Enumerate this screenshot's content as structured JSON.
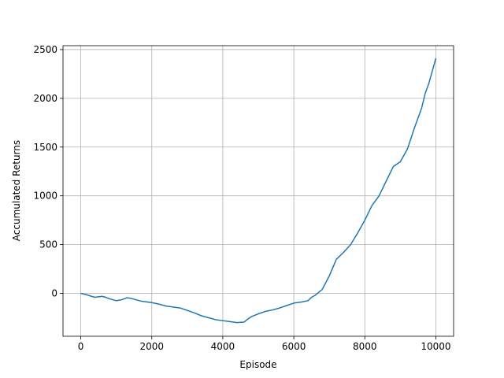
{
  "chart_data": {
    "type": "line",
    "xlabel": "Episode",
    "ylabel": "Accumulated Returns",
    "xlim": [
      -500,
      10500
    ],
    "ylim": [
      -440,
      2540
    ],
    "grid": true,
    "xticks": [
      0,
      2000,
      4000,
      6000,
      8000,
      10000
    ],
    "yticks": [
      0,
      500,
      1000,
      1500,
      2000,
      2500
    ],
    "series": [
      {
        "color": "#1f77b4",
        "x": [
          0,
          100,
          200,
          300,
          400,
          500,
          600,
          700,
          800,
          900,
          1000,
          1100,
          1200,
          1300,
          1400,
          1500,
          1600,
          1700,
          1800,
          1900,
          2000,
          2200,
          2400,
          2600,
          2800,
          3000,
          3200,
          3400,
          3600,
          3800,
          4000,
          4200,
          4400,
          4600,
          4700,
          4800,
          5000,
          5200,
          5400,
          5600,
          5800,
          6000,
          6200,
          6400,
          6500,
          6600,
          6800,
          7000,
          7200,
          7400,
          7600,
          7800,
          8000,
          8200,
          8400,
          8600,
          8800,
          9000,
          9200,
          9400,
          9600,
          9700,
          9800,
          10000
        ],
        "values": [
          0,
          -8,
          -18,
          -30,
          -40,
          -35,
          -30,
          -40,
          -55,
          -65,
          -75,
          -70,
          -60,
          -45,
          -50,
          -60,
          -70,
          -80,
          -85,
          -90,
          -95,
          -110,
          -130,
          -140,
          -150,
          -175,
          -200,
          -230,
          -250,
          -270,
          -280,
          -290,
          -300,
          -295,
          -265,
          -240,
          -210,
          -185,
          -170,
          -150,
          -125,
          -100,
          -90,
          -75,
          -40,
          -20,
          40,
          180,
          350,
          420,
          500,
          620,
          750,
          900,
          1000,
          1150,
          1300,
          1350,
          1480,
          1700,
          1900,
          2050,
          2150,
          2410
        ]
      }
    ]
  }
}
